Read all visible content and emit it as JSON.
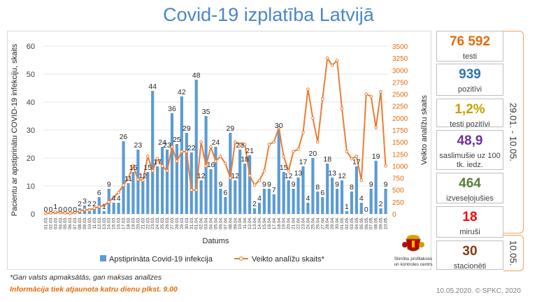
{
  "title": "Covid-19 izplatība Latvijā",
  "chart_data": {
    "type": "bar+line",
    "ylabel_left": "Pacientu ar apstiprinātu COVID-19 infekciju, skaits",
    "ylabel_right": "Veikto analīžu skaits",
    "xlabel": "Datums",
    "ylim_left": [
      0,
      60
    ],
    "yticks_left": [
      0,
      10,
      20,
      30,
      40,
      50,
      60
    ],
    "ylim_right": [
      0,
      3500
    ],
    "yticks_right": [
      0,
      250,
      500,
      750,
      1000,
      1250,
      1500,
      1750,
      2000,
      2250,
      2500,
      2750,
      3000,
      3250,
      3500
    ],
    "categories": [
      "01.03.",
      "02.03.",
      "03.03.",
      "04.03.",
      "05.03.",
      "06.03.",
      "07.03.",
      "08.03.",
      "09.03.",
      "10.03.",
      "11.03.",
      "12.03.",
      "13.03.",
      "14.03.",
      "15.03.",
      "16.03.",
      "17.03.",
      "18.03.",
      "19.03.",
      "20.03.",
      "21.03.",
      "22.03.",
      "23.03.",
      "24.03.",
      "25.03.",
      "26.03.",
      "27.03.",
      "28.03.",
      "29.03.",
      "30.03.",
      "31.03.",
      "01.04.",
      "02.04.",
      "03.04.",
      "04.04.",
      "05.04.",
      "06.04.",
      "07.04.",
      "08.04.",
      "09.04.",
      "10.04.",
      "11.04.",
      "12.04.",
      "13.04.",
      "14.04.",
      "15.04.",
      "16.04.",
      "17.04.",
      "18.04.",
      "19.04.",
      "20.04.",
      "21.04.",
      "22.04.",
      "23.04.",
      "24.04.",
      "25.04.",
      "26.04.",
      "27.04.",
      "28.04.",
      "29.04.",
      "30.04.",
      "01.05.",
      "02.05.",
      "03.05.",
      "04.05.",
      "05.05.",
      "06.05.",
      "07.05.",
      "08.05.",
      "09.05.",
      "10.05."
    ],
    "series": [
      {
        "name": "Apstiprināta Covid-19 infekcija",
        "type": "bar",
        "color": "#5b9bd5",
        "values": [
          0,
          0,
          1,
          0,
          0,
          0,
          0,
          2,
          3,
          2,
          2,
          6,
          1,
          9,
          4,
          4,
          26,
          11,
          15,
          23,
          12,
          15,
          44,
          17,
          24,
          23,
          36,
          25,
          42,
          29,
          22,
          48,
          12,
          35,
          16,
          24,
          9,
          6,
          29,
          12,
          23,
          18,
          21,
          2,
          4,
          9,
          9,
          7,
          30,
          15,
          12,
          9,
          13,
          17,
          4,
          20,
          8,
          6,
          18,
          13,
          9,
          12,
          1,
          8,
          17,
          4,
          0,
          9,
          19,
          2,
          9
        ]
      },
      {
        "name": "Veikto analīžu skaits*",
        "type": "line",
        "color": "#ed7d31",
        "values": [
          10,
          20,
          40,
          30,
          20,
          10,
          30,
          60,
          90,
          80,
          120,
          150,
          180,
          250,
          350,
          450,
          600,
          750,
          1000,
          720,
          700,
          1200,
          900,
          1150,
          1000,
          900,
          1400,
          1100,
          1300,
          1300,
          500,
          500,
          1500,
          1000,
          1400,
          1100,
          1200,
          1050,
          750,
          1500,
          1450,
          1450,
          800,
          600,
          700,
          900,
          1450,
          1500,
          1800,
          1200,
          900,
          1300,
          1350,
          1700,
          2600,
          2000,
          1500,
          2400,
          3250,
          3100,
          3200,
          2200,
          1300,
          1150,
          1200,
          700,
          2500,
          2450,
          1800,
          2550,
          1000
        ]
      }
    ],
    "bar_labels": [
      "0",
      "0",
      "1",
      "0",
      "0",
      "0",
      "0",
      "2",
      "3",
      "2",
      "2",
      "6",
      "1",
      "9",
      "4",
      "4",
      "26",
      "11",
      "15",
      "23",
      "12",
      "15",
      "44",
      "17",
      "24",
      "23",
      "36",
      "25",
      "42",
      "29",
      "22",
      "48",
      "12",
      "35",
      "16",
      "24",
      "9",
      "6",
      "29",
      "12",
      "23",
      "18",
      "21",
      "2",
      "4",
      "9",
      "9",
      "7",
      "30",
      "15",
      "12",
      "9",
      "13",
      "17",
      "4",
      "20",
      "8",
      "6",
      "18",
      "13",
      "9",
      "12",
      "1",
      "8",
      "17",
      "4",
      "0",
      "9",
      "19",
      "2",
      "9"
    ],
    "legend_position": "bottom"
  },
  "stats": [
    {
      "value": "76 592",
      "label": "testi",
      "color": "#e36c0a"
    },
    {
      "value": "939",
      "label": "pozitīvi",
      "color": "#2e75b6"
    },
    {
      "value": "1,2%",
      "label": "testi pozitīvi",
      "color": "#c8a000"
    },
    {
      "value": "48,9",
      "label": "saslimušie uz 100 tk. iedz.",
      "color": "#7030a0"
    },
    {
      "value": "464",
      "label": "izveseļojušies",
      "color": "#548235"
    },
    {
      "value": "18",
      "label": "miruši",
      "color": "#ff0000"
    },
    {
      "value": "30",
      "label": "stacionēti",
      "color": "#843c0c"
    }
  ],
  "period_label": "29.01. - 10.05.",
  "current_label": "10.05.",
  "logo_caption": "Slimību profilakses un kontroles centrs",
  "footnote": "*Gan valsts apmaksātās, gan maksas analīzes",
  "update_note": "Informācija tiek atjaunota katru dienu plkst. 9.00",
  "credit": "10.05.2020. © SPKC, 2020"
}
